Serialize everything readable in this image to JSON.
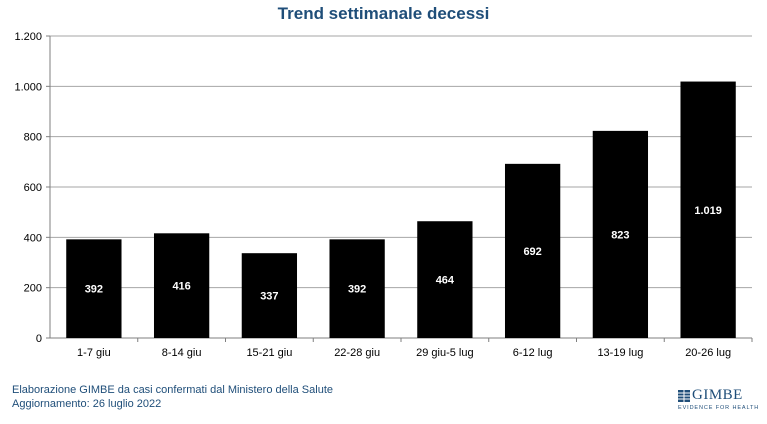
{
  "title": "Trend settimanale decessi",
  "chart_data": {
    "type": "bar",
    "title": "Trend settimanale decessi",
    "xlabel": "",
    "ylabel": "",
    "categories": [
      "1-7 giu",
      "8-14 giu",
      "15-21 giu",
      "22-28 giu",
      "29 giu-5 lug",
      "6-12 lug",
      "13-19 lug",
      "20-26 lug"
    ],
    "values": [
      392,
      416,
      337,
      392,
      464,
      692,
      823,
      1019
    ],
    "value_labels": [
      "392",
      "416",
      "337",
      "392",
      "464",
      "692",
      "823",
      "1.019"
    ],
    "ylim": [
      0,
      1200
    ],
    "yticks": [
      0,
      200,
      400,
      600,
      800,
      1000,
      1200
    ],
    "ytick_labels": [
      "0",
      "200",
      "400",
      "600",
      "800",
      "1.000",
      "1.200"
    ],
    "grid": "horizontal",
    "legend": "none",
    "bar_color": "#000000",
    "label_color": "#ffffff"
  },
  "footer": {
    "line1": "Elaborazione GIMBE da casi confermati dal Ministero della Salute",
    "line2": "Aggiornamento: 26 luglio 2022"
  },
  "logo": {
    "word": "GIMBE",
    "tagline": "EVIDENCE FOR HEALTH",
    "color": "#1f4e79"
  }
}
